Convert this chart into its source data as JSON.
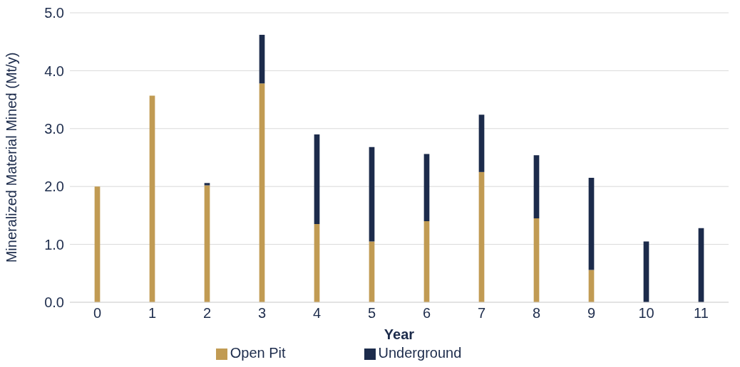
{
  "chart_data": {
    "type": "bar",
    "stacked": true,
    "xlabel": "Year",
    "ylabel": "Mineralized Material Mined  (Mt/y)",
    "categories": [
      "0",
      "1",
      "2",
      "3",
      "4",
      "5",
      "6",
      "7",
      "8",
      "9",
      "10",
      "11"
    ],
    "series": [
      {
        "name": "Open Pit",
        "color": "#c19b53",
        "values": [
          2.0,
          3.57,
          2.02,
          3.78,
          1.35,
          1.05,
          1.4,
          2.25,
          1.45,
          0.56,
          null,
          null
        ]
      },
      {
        "name": "Underground",
        "color": "#1c2b4b",
        "values": [
          null,
          null,
          0.04,
          0.84,
          1.55,
          1.63,
          1.16,
          0.99,
          1.09,
          1.59,
          1.05,
          1.28
        ]
      }
    ],
    "ylim": [
      0,
      5
    ],
    "yticks": [
      {
        "value": 0,
        "label": "0.0"
      },
      {
        "value": 1,
        "label": "1.0"
      },
      {
        "value": 2,
        "label": "2.0"
      },
      {
        "value": 3,
        "label": "3.0"
      },
      {
        "value": 4,
        "label": "4.0"
      },
      {
        "value": 5,
        "label": "5.0"
      }
    ],
    "grid": "y",
    "legend": "bottom"
  }
}
